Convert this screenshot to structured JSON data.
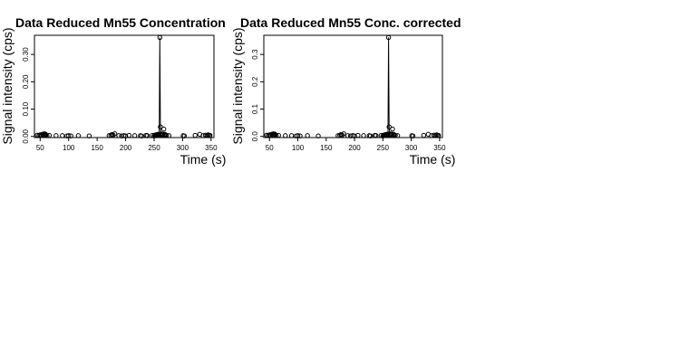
{
  "chart_data": [
    {
      "type": "scatter",
      "title": "Data Reduced Mn55 Concentration",
      "xlabel": "Time (s)",
      "ylabel": "Signal intensity (cps)",
      "xlim": [
        40,
        355
      ],
      "ylim": [
        -0.004,
        0.37
      ],
      "x_ticks": [
        50,
        100,
        150,
        200,
        250,
        300,
        350
      ],
      "y_ticks": [
        0.0,
        0.1,
        0.2,
        0.3
      ],
      "y_tick_labels": [
        "0.00",
        "0.10",
        "0.20",
        "0.30"
      ],
      "grid": false,
      "legend": "none",
      "points": [
        {
          "x": 45,
          "y": 0.005
        },
        {
          "x": 48,
          "y": 0.004
        },
        {
          "x": 50,
          "y": 0.006
        },
        {
          "x": 52,
          "y": 0.003
        },
        {
          "x": 54,
          "y": 0.008
        },
        {
          "x": 56,
          "y": 0.005
        },
        {
          "x": 57,
          "y": 0.01
        },
        {
          "x": 58,
          "y": 0.004
        },
        {
          "x": 59,
          "y": 0.009
        },
        {
          "x": 60,
          "y": 0.006
        },
        {
          "x": 62,
          "y": 0.003
        },
        {
          "x": 66,
          "y": 0.004
        },
        {
          "x": 78,
          "y": 0.003
        },
        {
          "x": 89,
          "y": 0.003
        },
        {
          "x": 97,
          "y": 0.002
        },
        {
          "x": 100,
          "y": 0.003
        },
        {
          "x": 104,
          "y": 0.002
        },
        {
          "x": 117,
          "y": 0.003
        },
        {
          "x": 136,
          "y": 0.002
        },
        {
          "x": 171,
          "y": 0.003
        },
        {
          "x": 174,
          "y": 0.004
        },
        {
          "x": 176,
          "y": 0.007
        },
        {
          "x": 178,
          "y": 0.005
        },
        {
          "x": 181,
          "y": 0.01
        },
        {
          "x": 188,
          "y": 0.003
        },
        {
          "x": 193,
          "y": 0.002
        },
        {
          "x": 197,
          "y": 0.003
        },
        {
          "x": 200,
          "y": 0.002
        },
        {
          "x": 206,
          "y": 0.004
        },
        {
          "x": 216,
          "y": 0.003
        },
        {
          "x": 226,
          "y": 0.003
        },
        {
          "x": 228,
          "y": 0.002
        },
        {
          "x": 236,
          "y": 0.004
        },
        {
          "x": 238,
          "y": 0.003
        },
        {
          "x": 247,
          "y": 0.004
        },
        {
          "x": 250,
          "y": 0.002
        },
        {
          "x": 251,
          "y": 0.005
        },
        {
          "x": 252,
          "y": 0.003
        },
        {
          "x": 253,
          "y": 0.006
        },
        {
          "x": 254,
          "y": 0.004
        },
        {
          "x": 255,
          "y": 0.007
        },
        {
          "x": 256,
          "y": 0.005
        },
        {
          "x": 257,
          "y": 0.008
        },
        {
          "x": 258,
          "y": 0.006
        },
        {
          "x": 259,
          "y": 0.004
        },
        {
          "x": 260,
          "y": 0.362
        },
        {
          "x": 261,
          "y": 0.035
        },
        {
          "x": 262,
          "y": 0.01
        },
        {
          "x": 263,
          "y": 0.007
        },
        {
          "x": 264,
          "y": 0.005
        },
        {
          "x": 265,
          "y": 0.009
        },
        {
          "x": 266,
          "y": 0.006
        },
        {
          "x": 267,
          "y": 0.027
        },
        {
          "x": 268,
          "y": 0.004
        },
        {
          "x": 269,
          "y": 0.008
        },
        {
          "x": 270,
          "y": 0.005
        },
        {
          "x": 272,
          "y": 0.004
        },
        {
          "x": 276,
          "y": 0.003
        },
        {
          "x": 301,
          "y": 0.003
        },
        {
          "x": 303,
          "y": 0.002
        },
        {
          "x": 322,
          "y": 0.004
        },
        {
          "x": 330,
          "y": 0.008
        },
        {
          "x": 336,
          "y": 0.003
        },
        {
          "x": 340,
          "y": 0.005
        },
        {
          "x": 343,
          "y": 0.004
        },
        {
          "x": 345,
          "y": 0.006
        },
        {
          "x": 347,
          "y": 0.003
        },
        {
          "x": 348,
          "y": 0.004
        }
      ]
    },
    {
      "type": "scatter",
      "title": "Data Reduced Mn55 Conc. corrected",
      "xlabel": "Time (s)",
      "ylabel": "Signal intensity (cps)",
      "xlim": [
        40,
        355
      ],
      "ylim": [
        -0.004,
        0.37
      ],
      "x_ticks": [
        50,
        100,
        150,
        200,
        250,
        300,
        350
      ],
      "y_ticks": [
        0.0,
        0.1,
        0.2,
        0.3
      ],
      "y_tick_labels": [
        "0.0",
        "0.1",
        "0.2",
        "0.3"
      ],
      "grid": false,
      "legend": "none",
      "points": [
        {
          "x": 45,
          "y": 0.005
        },
        {
          "x": 48,
          "y": 0.004
        },
        {
          "x": 50,
          "y": 0.006
        },
        {
          "x": 52,
          "y": 0.003
        },
        {
          "x": 54,
          "y": 0.008
        },
        {
          "x": 56,
          "y": 0.005
        },
        {
          "x": 57,
          "y": 0.01
        },
        {
          "x": 58,
          "y": 0.004
        },
        {
          "x": 59,
          "y": 0.009
        },
        {
          "x": 60,
          "y": 0.006
        },
        {
          "x": 62,
          "y": 0.003
        },
        {
          "x": 66,
          "y": 0.004
        },
        {
          "x": 78,
          "y": 0.003
        },
        {
          "x": 89,
          "y": 0.003
        },
        {
          "x": 97,
          "y": 0.002
        },
        {
          "x": 100,
          "y": 0.003
        },
        {
          "x": 104,
          "y": 0.002
        },
        {
          "x": 117,
          "y": 0.003
        },
        {
          "x": 136,
          "y": 0.002
        },
        {
          "x": 171,
          "y": 0.003
        },
        {
          "x": 174,
          "y": 0.004
        },
        {
          "x": 176,
          "y": 0.007
        },
        {
          "x": 178,
          "y": 0.005
        },
        {
          "x": 181,
          "y": 0.01
        },
        {
          "x": 188,
          "y": 0.003
        },
        {
          "x": 193,
          "y": 0.002
        },
        {
          "x": 197,
          "y": 0.003
        },
        {
          "x": 200,
          "y": 0.002
        },
        {
          "x": 206,
          "y": 0.004
        },
        {
          "x": 216,
          "y": 0.003
        },
        {
          "x": 226,
          "y": 0.003
        },
        {
          "x": 228,
          "y": 0.002
        },
        {
          "x": 236,
          "y": 0.004
        },
        {
          "x": 238,
          "y": 0.003
        },
        {
          "x": 247,
          "y": 0.004
        },
        {
          "x": 250,
          "y": 0.002
        },
        {
          "x": 251,
          "y": 0.005
        },
        {
          "x": 252,
          "y": 0.003
        },
        {
          "x": 253,
          "y": 0.006
        },
        {
          "x": 254,
          "y": 0.004
        },
        {
          "x": 255,
          "y": 0.007
        },
        {
          "x": 256,
          "y": 0.005
        },
        {
          "x": 257,
          "y": 0.008
        },
        {
          "x": 258,
          "y": 0.006
        },
        {
          "x": 259,
          "y": 0.004
        },
        {
          "x": 260,
          "y": 0.362
        },
        {
          "x": 261,
          "y": 0.035
        },
        {
          "x": 262,
          "y": 0.01
        },
        {
          "x": 263,
          "y": 0.007
        },
        {
          "x": 264,
          "y": 0.005
        },
        {
          "x": 265,
          "y": 0.009
        },
        {
          "x": 266,
          "y": 0.006
        },
        {
          "x": 267,
          "y": 0.027
        },
        {
          "x": 268,
          "y": 0.004
        },
        {
          "x": 269,
          "y": 0.008
        },
        {
          "x": 270,
          "y": 0.005
        },
        {
          "x": 272,
          "y": 0.004
        },
        {
          "x": 276,
          "y": 0.003
        },
        {
          "x": 301,
          "y": 0.003
        },
        {
          "x": 303,
          "y": 0.002
        },
        {
          "x": 322,
          "y": 0.004
        },
        {
          "x": 330,
          "y": 0.008
        },
        {
          "x": 336,
          "y": 0.003
        },
        {
          "x": 340,
          "y": 0.005
        },
        {
          "x": 343,
          "y": 0.004
        },
        {
          "x": 345,
          "y": 0.006
        },
        {
          "x": 347,
          "y": 0.003
        },
        {
          "x": 348,
          "y": 0.004
        }
      ]
    }
  ]
}
